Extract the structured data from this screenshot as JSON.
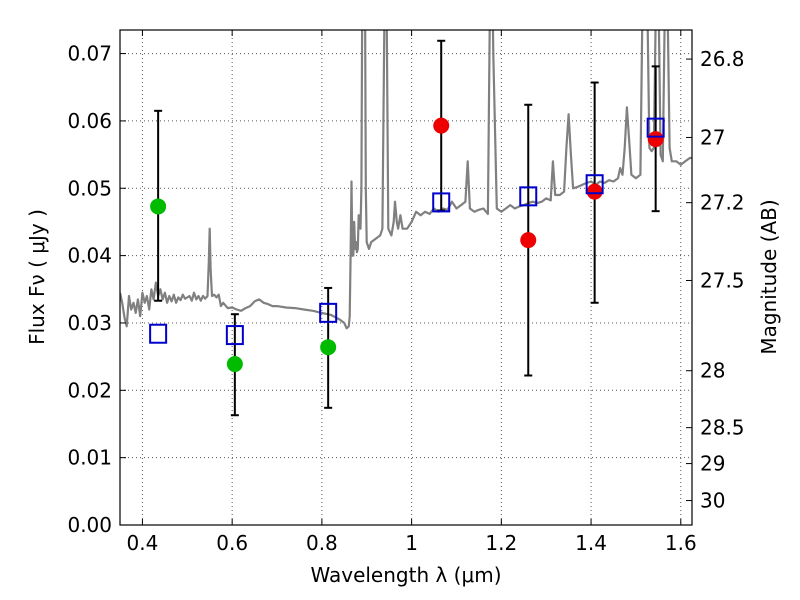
{
  "chart_data": {
    "type": "scatter",
    "xlabel": "Wavelength  λ (μm)",
    "ylabel": "Flux  Fν  ( μJy )",
    "ylabel_right": "Magnitude (AB)",
    "xlim": [
      0.35,
      1.625
    ],
    "ylim": [
      0.0,
      0.0735
    ],
    "grid": true,
    "x_ticks": [
      0.4,
      0.6,
      0.8,
      1.0,
      1.2,
      1.4,
      1.6
    ],
    "x_tick_labels": [
      "0.4",
      "0.6",
      "0.8",
      "1",
      "1.2",
      "1.4",
      "1.6"
    ],
    "y_ticks": [
      0.0,
      0.01,
      0.02,
      0.03,
      0.04,
      0.05,
      0.06,
      0.07
    ],
    "y_tick_labels": [
      "0.00",
      "0.01",
      "0.02",
      "0.03",
      "0.04",
      "0.05",
      "0.06",
      "0.07"
    ],
    "right_axis_ticks": [
      {
        "magnitude": 26.8,
        "label": "26.8"
      },
      {
        "magnitude": 27.0,
        "label": "27"
      },
      {
        "magnitude": 27.2,
        "label": "27.2"
      },
      {
        "magnitude": 27.5,
        "label": "27.5"
      },
      {
        "magnitude": 28.0,
        "label": "28"
      },
      {
        "magnitude": 28.5,
        "label": "28.5"
      },
      {
        "magnitude": 29.0,
        "label": "29"
      },
      {
        "magnitude": 30.0,
        "label": "30"
      }
    ],
    "series": [
      {
        "kind": "points",
        "marker": "circle",
        "color": "#00bb00",
        "points": [
          {
            "x": 0.435,
            "y": 0.0473,
            "ylo": 0.0333,
            "yhi": 0.0615
          },
          {
            "x": 0.606,
            "y": 0.0239,
            "ylo": 0.0163,
            "yhi": 0.0313
          },
          {
            "x": 0.814,
            "y": 0.0264,
            "ylo": 0.0174,
            "yhi": 0.0352
          }
        ]
      },
      {
        "kind": "points",
        "marker": "circle",
        "color": "#ee0000",
        "points": [
          {
            "x": 1.066,
            "y": 0.0593,
            "ylo": 0.0467,
            "yhi": 0.0719
          },
          {
            "x": 1.26,
            "y": 0.0423,
            "ylo": 0.0222,
            "yhi": 0.0624
          },
          {
            "x": 1.408,
            "y": 0.0495,
            "ylo": 0.033,
            "yhi": 0.0657
          },
          {
            "x": 1.544,
            "y": 0.0573,
            "ylo": 0.0466,
            "yhi": 0.0681
          }
        ]
      },
      {
        "kind": "points",
        "marker": "open-square",
        "color": "#0000cc",
        "points": [
          {
            "x": 0.435,
            "y": 0.0284
          },
          {
            "x": 0.606,
            "y": 0.0282
          },
          {
            "x": 0.814,
            "y": 0.0315
          },
          {
            "x": 1.066,
            "y": 0.0479
          },
          {
            "x": 1.26,
            "y": 0.0488
          },
          {
            "x": 1.408,
            "y": 0.0506
          },
          {
            "x": 1.544,
            "y": 0.059
          }
        ]
      },
      {
        "kind": "line",
        "color": "#808080",
        "points": [
          [
            0.35,
            0.0345
          ],
          [
            0.355,
            0.033
          ],
          [
            0.36,
            0.0308
          ],
          [
            0.365,
            0.0295
          ],
          [
            0.37,
            0.034
          ],
          [
            0.375,
            0.032
          ],
          [
            0.38,
            0.033
          ],
          [
            0.385,
            0.0315
          ],
          [
            0.39,
            0.0335
          ],
          [
            0.395,
            0.031
          ],
          [
            0.4,
            0.0345
          ],
          [
            0.405,
            0.033
          ],
          [
            0.41,
            0.034
          ],
          [
            0.415,
            0.032
          ],
          [
            0.42,
            0.035
          ],
          [
            0.425,
            0.0335
          ],
          [
            0.43,
            0.036
          ],
          [
            0.435,
            0.034
          ],
          [
            0.44,
            0.035
          ],
          [
            0.445,
            0.0335
          ],
          [
            0.45,
            0.0345
          ],
          [
            0.455,
            0.033
          ],
          [
            0.46,
            0.034
          ],
          [
            0.465,
            0.0332
          ],
          [
            0.47,
            0.0342
          ],
          [
            0.475,
            0.033
          ],
          [
            0.48,
            0.0338
          ],
          [
            0.485,
            0.0334
          ],
          [
            0.49,
            0.0342
          ],
          [
            0.495,
            0.0336
          ],
          [
            0.5,
            0.0338
          ],
          [
            0.505,
            0.034
          ],
          [
            0.51,
            0.0333
          ],
          [
            0.515,
            0.0345
          ],
          [
            0.52,
            0.0335
          ],
          [
            0.525,
            0.034
          ],
          [
            0.53,
            0.0333
          ],
          [
            0.535,
            0.034
          ],
          [
            0.54,
            0.0336
          ],
          [
            0.545,
            0.034
          ],
          [
            0.548,
            0.039
          ],
          [
            0.55,
            0.044
          ],
          [
            0.552,
            0.038
          ],
          [
            0.555,
            0.034
          ],
          [
            0.56,
            0.0342
          ],
          [
            0.565,
            0.0338
          ],
          [
            0.57,
            0.0342
          ],
          [
            0.575,
            0.0325
          ],
          [
            0.58,
            0.033
          ],
          [
            0.59,
            0.0322
          ],
          [
            0.6,
            0.0323
          ],
          [
            0.61,
            0.032
          ],
          [
            0.62,
            0.0318
          ],
          [
            0.63,
            0.0322
          ],
          [
            0.64,
            0.0325
          ],
          [
            0.65,
            0.0332
          ],
          [
            0.66,
            0.0335
          ],
          [
            0.67,
            0.033
          ],
          [
            0.68,
            0.0328
          ],
          [
            0.69,
            0.0325
          ],
          [
            0.7,
            0.0325
          ],
          [
            0.72,
            0.0323
          ],
          [
            0.74,
            0.0322
          ],
          [
            0.76,
            0.032
          ],
          [
            0.78,
            0.0318
          ],
          [
            0.8,
            0.0315
          ],
          [
            0.82,
            0.0312
          ],
          [
            0.84,
            0.0305
          ],
          [
            0.85,
            0.03
          ],
          [
            0.855,
            0.0292
          ],
          [
            0.86,
            0.0295
          ],
          [
            0.862,
            0.031
          ],
          [
            0.864,
            0.04
          ],
          [
            0.866,
            0.051
          ],
          [
            0.868,
            0.04
          ],
          [
            0.87,
            0.04
          ],
          [
            0.872,
            0.045
          ],
          [
            0.874,
            0.041
          ],
          [
            0.876,
            0.042
          ],
          [
            0.878,
            0.0405
          ],
          [
            0.88,
            0.041
          ],
          [
            0.882,
            0.046
          ],
          [
            0.884,
            0.045
          ],
          [
            0.886,
            0.044
          ],
          [
            0.888,
            0.05
          ],
          [
            0.89,
            0.08
          ],
          [
            0.896,
            0.08
          ],
          [
            0.898,
            0.05
          ],
          [
            0.9,
            0.042
          ],
          [
            0.905,
            0.041
          ],
          [
            0.91,
            0.042
          ],
          [
            0.92,
            0.0425
          ],
          [
            0.93,
            0.043
          ],
          [
            0.935,
            0.044
          ],
          [
            0.94,
            0.08
          ],
          [
            0.944,
            0.08
          ],
          [
            0.948,
            0.044
          ],
          [
            0.955,
            0.043
          ],
          [
            0.96,
            0.045
          ],
          [
            0.963,
            0.048
          ],
          [
            0.967,
            0.045
          ],
          [
            0.97,
            0.044
          ],
          [
            0.975,
            0.046
          ],
          [
            0.98,
            0.044
          ],
          [
            0.99,
            0.044
          ],
          [
            1.0,
            0.045
          ],
          [
            1.01,
            0.0465
          ],
          [
            1.02,
            0.046
          ],
          [
            1.03,
            0.0465
          ],
          [
            1.04,
            0.0462
          ],
          [
            1.05,
            0.047
          ],
          [
            1.06,
            0.0465
          ],
          [
            1.07,
            0.047
          ],
          [
            1.08,
            0.0468
          ],
          [
            1.09,
            0.048
          ],
          [
            1.1,
            0.047
          ],
          [
            1.11,
            0.0475
          ],
          [
            1.12,
            0.048
          ],
          [
            1.125,
            0.054
          ],
          [
            1.13,
            0.047
          ],
          [
            1.14,
            0.0465
          ],
          [
            1.15,
            0.0468
          ],
          [
            1.16,
            0.047
          ],
          [
            1.17,
            0.0462
          ],
          [
            1.175,
            0.08
          ],
          [
            1.18,
            0.08
          ],
          [
            1.182,
            0.07
          ],
          [
            1.19,
            0.047
          ],
          [
            1.2,
            0.0465
          ],
          [
            1.21,
            0.047
          ],
          [
            1.22,
            0.0475
          ],
          [
            1.23,
            0.047
          ],
          [
            1.24,
            0.0473
          ],
          [
            1.25,
            0.0475
          ],
          [
            1.26,
            0.0478
          ],
          [
            1.27,
            0.048
          ],
          [
            1.28,
            0.0478
          ],
          [
            1.29,
            0.048
          ],
          [
            1.3,
            0.0485
          ],
          [
            1.31,
            0.0482
          ],
          [
            1.315,
            0.054
          ],
          [
            1.32,
            0.049
          ],
          [
            1.33,
            0.049
          ],
          [
            1.34,
            0.0495
          ],
          [
            1.345,
            0.056
          ],
          [
            1.35,
            0.061
          ],
          [
            1.355,
            0.055
          ],
          [
            1.36,
            0.05
          ],
          [
            1.37,
            0.0502
          ],
          [
            1.38,
            0.0505
          ],
          [
            1.39,
            0.0508
          ],
          [
            1.4,
            0.051
          ],
          [
            1.41,
            0.0505
          ],
          [
            1.42,
            0.051
          ],
          [
            1.43,
            0.0508
          ],
          [
            1.44,
            0.0512
          ],
          [
            1.45,
            0.051
          ],
          [
            1.46,
            0.0515
          ],
          [
            1.465,
            0.053
          ],
          [
            1.47,
            0.052
          ],
          [
            1.475,
            0.056
          ],
          [
            1.48,
            0.062
          ],
          [
            1.485,
            0.057
          ],
          [
            1.49,
            0.052
          ],
          [
            1.5,
            0.0515
          ],
          [
            1.51,
            0.052
          ],
          [
            1.515,
            0.08
          ],
          [
            1.52,
            0.08
          ],
          [
            1.525,
            0.08
          ],
          [
            1.53,
            0.056
          ],
          [
            1.535,
            0.0555
          ],
          [
            1.54,
            0.056
          ],
          [
            1.545,
            0.08
          ],
          [
            1.55,
            0.08
          ],
          [
            1.555,
            0.055
          ],
          [
            1.56,
            0.054
          ],
          [
            1.565,
            0.08
          ],
          [
            1.57,
            0.08
          ],
          [
            1.575,
            0.056
          ],
          [
            1.58,
            0.054
          ],
          [
            1.59,
            0.054
          ],
          [
            1.6,
            0.0535
          ],
          [
            1.61,
            0.054
          ],
          [
            1.62,
            0.0545
          ],
          [
            1.625,
            0.0545
          ]
        ]
      }
    ]
  }
}
